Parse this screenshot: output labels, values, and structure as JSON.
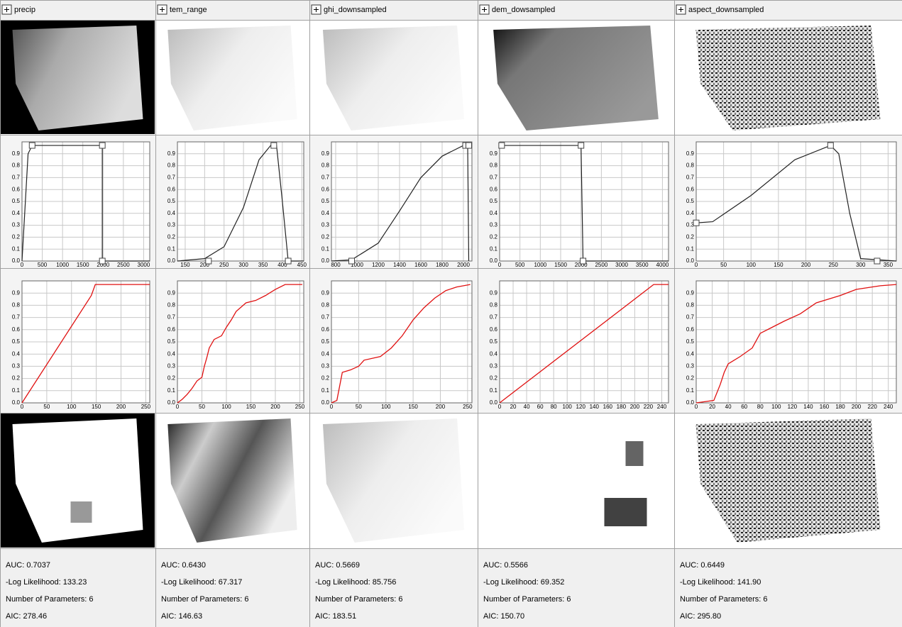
{
  "ylim": [
    0,
    1
  ],
  "yticks": [
    {
      "value": 0,
      "label": "0.0"
    },
    0.1,
    0.2,
    0.3,
    0.4,
    0.5,
    0.6,
    0.7,
    0.8,
    0.9
  ],
  "columns": [
    {
      "name": "precip",
      "hist": {
        "xlim": [
          0,
          3150
        ],
        "xticks": [
          0,
          500,
          1000,
          1500,
          2000,
          2500,
          3000
        ],
        "curve": {
          "x": [
            0,
            150,
            250,
            1980,
            1980,
            3150
          ],
          "y": [
            0.0,
            0.9,
            0.97,
            0.97,
            0.0,
            0.0
          ]
        },
        "handles": {
          "x": [
            250,
            1980,
            1980
          ],
          "y": [
            0.97,
            0.97,
            0.0
          ]
        }
      },
      "cdf": {
        "xlim": [
          0,
          258
        ],
        "xticks": [
          0,
          50,
          100,
          150,
          200,
          250
        ],
        "x": [
          0,
          140,
          148,
          258
        ],
        "y": [
          0.0,
          0.88,
          0.97,
          0.97
        ]
      },
      "stats": [
        "AUC: 0.7037",
        "-Log Likelihood: 133.23",
        "Number of Parameters: 6",
        "AIC: 278.46"
      ]
    },
    {
      "name": "tem_range",
      "hist": {
        "xlim": [
          130,
          455
        ],
        "xticks": [
          150,
          200,
          250,
          300,
          350,
          400,
          450
        ],
        "curve": {
          "x": [
            130,
            200,
            250,
            300,
            340,
            370,
            385,
            400,
            415,
            455
          ],
          "y": [
            0.0,
            0.02,
            0.12,
            0.45,
            0.85,
            0.97,
            0.97,
            0.5,
            0.0,
            0.0
          ]
        },
        "handles": {
          "x": [
            210,
            378,
            415
          ],
          "y": [
            0.0,
            0.97,
            0.0
          ]
        }
      },
      "cdf": {
        "xlim": [
          0,
          258
        ],
        "xticks": [
          0,
          50,
          100,
          150,
          200,
          250
        ],
        "x": [
          0,
          10,
          20,
          30,
          40,
          50,
          55,
          60,
          65,
          75,
          90,
          100,
          110,
          120,
          140,
          160,
          180,
          200,
          220,
          255
        ],
        "y": [
          0.0,
          0.03,
          0.07,
          0.12,
          0.18,
          0.21,
          0.3,
          0.37,
          0.45,
          0.52,
          0.55,
          0.62,
          0.68,
          0.75,
          0.82,
          0.84,
          0.88,
          0.93,
          0.97,
          0.97
        ]
      },
      "stats": [
        "AUC: 0.6430",
        "-Log Likelihood: 67.317",
        "Number of Parameters: 6",
        "AIC: 146.63"
      ]
    },
    {
      "name": "ghi_downsampled",
      "hist": {
        "xlim": [
          760,
          2080
        ],
        "xticks": [
          800,
          1000,
          1200,
          1400,
          1600,
          1800,
          2000
        ],
        "curve": {
          "x": [
            760,
            950,
            1200,
            1400,
            1600,
            1800,
            2000,
            2040,
            2050
          ],
          "y": [
            0.0,
            0.01,
            0.15,
            0.42,
            0.7,
            0.88,
            0.97,
            0.97,
            0.0
          ]
        },
        "handles": {
          "x": [
            950,
            2020,
            2050
          ],
          "y": [
            0.0,
            0.97,
            0.97
          ]
        }
      },
      "cdf": {
        "xlim": [
          0,
          258
        ],
        "xticks": [
          0,
          50,
          100,
          150,
          200,
          250
        ],
        "x": [
          0,
          10,
          20,
          35,
          50,
          60,
          90,
          110,
          130,
          150,
          170,
          190,
          210,
          230,
          255
        ],
        "y": [
          0.0,
          0.02,
          0.25,
          0.27,
          0.3,
          0.35,
          0.38,
          0.45,
          0.55,
          0.68,
          0.78,
          0.86,
          0.92,
          0.95,
          0.97
        ]
      },
      "stats": [
        "AUC: 0.5669",
        "-Log Likelihood: 85.756",
        "Number of Parameters: 6",
        "AIC: 183.51"
      ]
    },
    {
      "name": "dem_dowsampled",
      "hist": {
        "xlim": [
          0,
          4150
        ],
        "xticks": [
          0,
          500,
          1000,
          1500,
          2000,
          2500,
          3000,
          3500,
          4000
        ],
        "curve": {
          "x": [
            0,
            50,
            2000,
            2050,
            4150
          ],
          "y": [
            0.95,
            0.97,
            0.97,
            0.0,
            0.0
          ]
        },
        "handles": {
          "x": [
            50,
            2000,
            2050
          ],
          "y": [
            0.97,
            0.97,
            0.0
          ]
        }
      },
      "cdf": {
        "xlim": [
          0,
          250
        ],
        "xticks": [
          0,
          20,
          40,
          60,
          80,
          100,
          120,
          140,
          160,
          180,
          200,
          220,
          240
        ],
        "x": [
          0,
          228,
          250
        ],
        "y": [
          0.0,
          0.97,
          0.97
        ]
      },
      "stats": [
        "AUC: 0.5566",
        "-Log Likelihood: 69.352",
        "Number of Parameters: 6",
        "AIC: 150.70"
      ]
    },
    {
      "name": "aspect_downsampled",
      "hist": {
        "xlim": [
          0,
          365
        ],
        "xticks": [
          0,
          50,
          100,
          150,
          200,
          250,
          300,
          350
        ],
        "curve": {
          "x": [
            0,
            30,
            100,
            180,
            245,
            260,
            280,
            300,
            365
          ],
          "y": [
            0.32,
            0.33,
            0.55,
            0.85,
            0.97,
            0.9,
            0.4,
            0.02,
            0.0
          ]
        },
        "handles": {
          "x": [
            0,
            245,
            330
          ],
          "y": [
            0.32,
            0.97,
            0.0
          ]
        }
      },
      "cdf": {
        "xlim": [
          0,
          250
        ],
        "xticks": [
          0,
          20,
          40,
          60,
          80,
          100,
          120,
          140,
          160,
          180,
          200,
          220,
          240
        ],
        "x": [
          0,
          22,
          30,
          35,
          40,
          55,
          70,
          80,
          95,
          110,
          130,
          150,
          180,
          200,
          230,
          250
        ],
        "y": [
          0.0,
          0.02,
          0.15,
          0.25,
          0.32,
          0.38,
          0.45,
          0.57,
          0.62,
          0.67,
          0.73,
          0.82,
          0.88,
          0.93,
          0.96,
          0.97
        ]
      },
      "stats": [
        "AUC: 0.6449",
        "-Log Likelihood: 141.90",
        "Number of Parameters: 6",
        "AIC: 295.80"
      ]
    }
  ]
}
